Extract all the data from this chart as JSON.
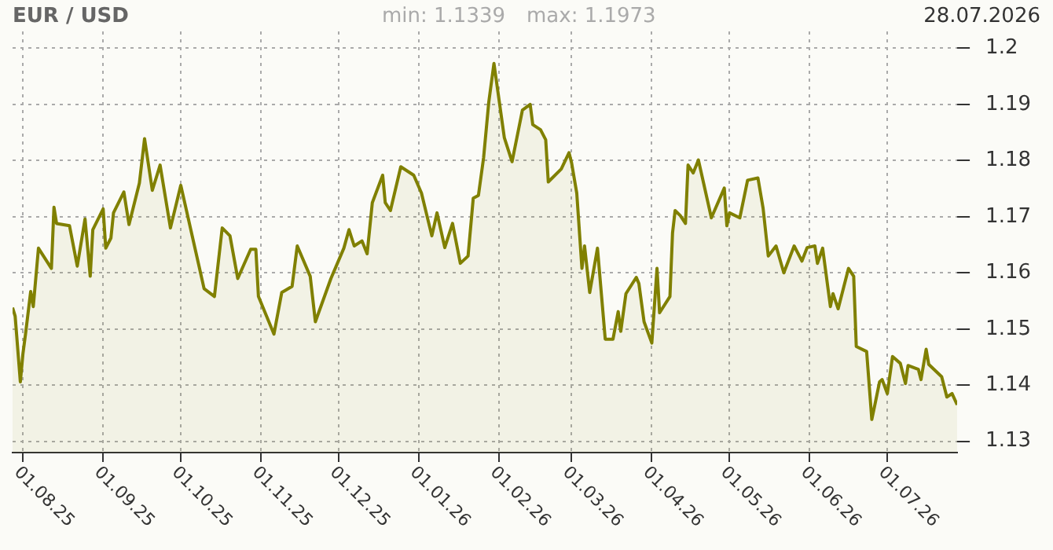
{
  "chart_data": {
    "type": "area",
    "title": "EUR / USD",
    "annotations": [
      "min: 1.1339",
      "max: 1.1973",
      "28.07.2026"
    ],
    "x": [
      "2025-07-28",
      "2025-07-29",
      "2025-07-31",
      "2025-08-01",
      "2025-08-02",
      "2025-08-04",
      "2025-08-05",
      "2025-08-07",
      "2025-08-12",
      "2025-08-13",
      "2025-08-14",
      "2025-08-19",
      "2025-08-22",
      "2025-08-25",
      "2025-08-27",
      "2025-08-28",
      "2025-09-01",
      "2025-09-02",
      "2025-09-04",
      "2025-09-05",
      "2025-09-09",
      "2025-09-11",
      "2025-09-15",
      "2025-09-17",
      "2025-09-20",
      "2025-09-23",
      "2025-09-27",
      "2025-10-01",
      "2025-10-10",
      "2025-10-14",
      "2025-10-17",
      "2025-10-20",
      "2025-10-23",
      "2025-10-28",
      "2025-10-30",
      "2025-10-31",
      "2025-11-06",
      "2025-11-09",
      "2025-11-13",
      "2025-11-15",
      "2025-11-20",
      "2025-11-22",
      "2025-11-28",
      "2025-12-03",
      "2025-12-05",
      "2025-12-07",
      "2025-12-10",
      "2025-12-12",
      "2025-12-14",
      "2025-12-18",
      "2025-12-19",
      "2025-12-21",
      "2025-12-25",
      "2025-12-30",
      "2026-01-02",
      "2026-01-06",
      "2026-01-08",
      "2026-01-11",
      "2026-01-14",
      "2026-01-17",
      "2026-01-20",
      "2026-01-22",
      "2026-01-24",
      "2026-01-26",
      "2026-01-28",
      "2026-01-30",
      "2026-01-31",
      "2026-02-03",
      "2026-02-06",
      "2026-02-10",
      "2026-02-13",
      "2026-02-14",
      "2026-02-17",
      "2026-02-19",
      "2026-02-20",
      "2026-02-25",
      "2026-02-28",
      "2026-03-01",
      "2026-03-03",
      "2026-03-05",
      "2026-03-06",
      "2026-03-08",
      "2026-03-11",
      "2026-03-14",
      "2026-03-17",
      "2026-03-19",
      "2026-03-20",
      "2026-03-22",
      "2026-03-26",
      "2026-03-27",
      "2026-03-29",
      "2026-04-01",
      "2026-04-03",
      "2026-04-04",
      "2026-04-08",
      "2026-04-09",
      "2026-04-10",
      "2026-04-12",
      "2026-04-14",
      "2026-04-15",
      "2026-04-17",
      "2026-04-19",
      "2026-04-21",
      "2026-04-24",
      "2026-04-29",
      "2026-04-30",
      "2026-05-01",
      "2026-05-05",
      "2026-05-08",
      "2026-05-12",
      "2026-05-14",
      "2026-05-16",
      "2026-05-19",
      "2026-05-22",
      "2026-05-26",
      "2026-05-29",
      "2026-05-31",
      "2026-06-03",
      "2026-06-04",
      "2026-06-06",
      "2026-06-09",
      "2026-06-10",
      "2026-06-12",
      "2026-06-16",
      "2026-06-18",
      "2026-06-19",
      "2026-06-23",
      "2026-06-25",
      "2026-06-26",
      "2026-06-28",
      "2026-06-29",
      "2026-07-01",
      "2026-07-03",
      "2026-07-06",
      "2026-07-08",
      "2026-07-09",
      "2026-07-13",
      "2026-07-14",
      "2026-07-16",
      "2026-07-17",
      "2026-07-22",
      "2026-07-24",
      "2026-07-26",
      "2026-07-28"
    ],
    "series": [
      {
        "color": "#808000",
        "values": [
          1.1538,
          1.1523,
          1.1406,
          1.1456,
          1.1491,
          1.1567,
          1.154,
          1.1644,
          1.1608,
          1.1717,
          1.1688,
          1.1684,
          1.1612,
          1.1696,
          1.1594,
          1.1677,
          1.1714,
          1.1644,
          1.1662,
          1.1707,
          1.1744,
          1.1686,
          1.176,
          1.1839,
          1.1747,
          1.1792,
          1.168,
          1.1756,
          1.1572,
          1.1558,
          1.168,
          1.1666,
          1.159,
          1.1642,
          1.1642,
          1.1558,
          1.1491,
          1.1565,
          1.1576,
          1.1648,
          1.1594,
          1.1513,
          1.159,
          1.1644,
          1.1677,
          1.1648,
          1.1657,
          1.1634,
          1.1725,
          1.1774,
          1.1725,
          1.1711,
          1.1789,
          1.1774,
          1.1742,
          1.1666,
          1.1707,
          1.1645,
          1.1688,
          1.1617,
          1.163,
          1.1733,
          1.1738,
          1.1805,
          1.1904,
          1.1973,
          1.194,
          1.1841,
          1.1798,
          1.189,
          1.19,
          1.1864,
          1.1855,
          1.1837,
          1.1762,
          1.1785,
          1.1814,
          1.1796,
          1.1742,
          1.1608,
          1.1648,
          1.1565,
          1.1644,
          1.1482,
          1.1482,
          1.1531,
          1.1496,
          1.1563,
          1.1592,
          1.1581,
          1.1513,
          1.1475,
          1.1608,
          1.1529,
          1.1558,
          1.1671,
          1.1711,
          1.1702,
          1.1688,
          1.1792,
          1.1778,
          1.1801,
          1.176,
          1.1698,
          1.1751,
          1.1684,
          1.1707,
          1.1698,
          1.1765,
          1.1769,
          1.1715,
          1.163,
          1.1648,
          1.16,
          1.1648,
          1.1621,
          1.1645,
          1.1648,
          1.1617,
          1.1644,
          1.154,
          1.1563,
          1.1536,
          1.1608,
          1.1594,
          1.1469,
          1.146,
          1.1339,
          1.1361,
          1.1406,
          1.141,
          1.1385,
          1.1451,
          1.1439,
          1.1403,
          1.1435,
          1.1428,
          1.141,
          1.1464,
          1.1437,
          1.1415,
          1.1379,
          1.1385,
          1.1365
        ]
      }
    ],
    "xlim": [
      "2025-07-28",
      "2026-07-28"
    ],
    "xticks": [
      {
        "value": "2025-08-01",
        "label": "01.08.25"
      },
      {
        "value": "2025-09-01",
        "label": "01.09.25"
      },
      {
        "value": "2025-10-01",
        "label": "01.10.25"
      },
      {
        "value": "2025-11-01",
        "label": "01.11.25"
      },
      {
        "value": "2025-12-01",
        "label": "01.12.25"
      },
      {
        "value": "2026-01-01",
        "label": "01.01.26"
      },
      {
        "value": "2026-02-01",
        "label": "01.02.26"
      },
      {
        "value": "2026-03-01",
        "label": "01.03.26"
      },
      {
        "value": "2026-04-01",
        "label": "01.04.26"
      },
      {
        "value": "2026-05-01",
        "label": "01.05.26"
      },
      {
        "value": "2026-06-01",
        "label": "01.06.26"
      },
      {
        "value": "2026-07-01",
        "label": "01.07.26"
      }
    ],
    "ylim": [
      1.128,
      1.203
    ],
    "yticks": [
      1.13,
      1.14,
      1.15,
      1.16,
      1.17,
      1.18,
      1.19,
      {
        "value": 1.2,
        "label": "1.2"
      }
    ],
    "grid": true,
    "legend": false,
    "marker": "none",
    "line_style": "solid"
  }
}
